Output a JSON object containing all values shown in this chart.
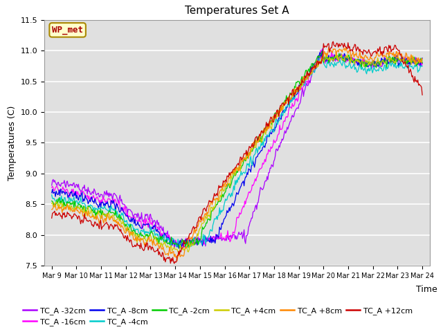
{
  "title": "Temperatures Set A",
  "ylabel": "Temperatures (C)",
  "xlabel": "Time",
  "ylim": [
    7.5,
    11.5
  ],
  "x_tick_labels": [
    "Mar 9",
    "Mar 10",
    "Mar 11",
    "Mar 12",
    "Mar 13",
    "Mar 14",
    "Mar 15",
    "Mar 16",
    "Mar 17",
    "Mar 18",
    "Mar 19",
    "Mar 20",
    "Mar 21",
    "Mar 22",
    "Mar 23",
    "Mar 24"
  ],
  "series": [
    {
      "label": "TC_A -32cm",
      "color": "#AA00FF"
    },
    {
      "label": "TC_A -16cm",
      "color": "#FF00FF"
    },
    {
      "label": "TC_A -8cm",
      "color": "#0000EE"
    },
    {
      "label": "TC_A -4cm",
      "color": "#00CCCC"
    },
    {
      "label": "TC_A -2cm",
      "color": "#00CC00"
    },
    {
      "label": "TC_A +4cm",
      "color": "#CCCC00"
    },
    {
      "label": "TC_A +8cm",
      "color": "#FF8800"
    },
    {
      "label": "TC_A +12cm",
      "color": "#CC0000"
    }
  ],
  "annotation_text": "WP_met",
  "annotation_color": "#AA0000",
  "annotation_bg": "#FFFFCC",
  "annotation_border": "#AA8800",
  "background_color": "#E0E0E0",
  "grid_color": "#FFFFFF",
  "title_fontsize": 11,
  "axis_fontsize": 9,
  "tick_fontsize": 8,
  "legend_fontsize": 8
}
